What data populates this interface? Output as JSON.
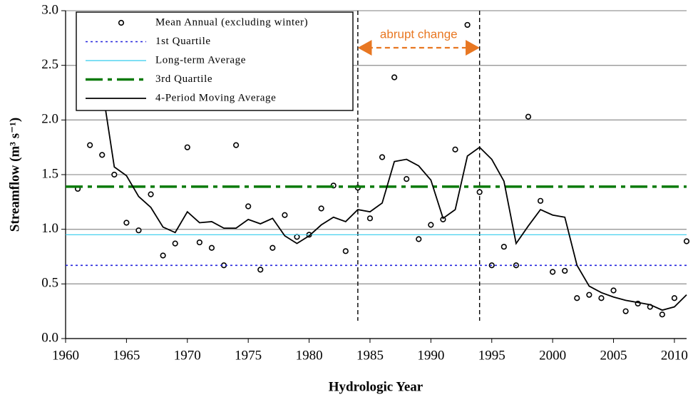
{
  "chart_data": {
    "type": "scatter",
    "x_label": "Hydrologic Year",
    "y_label": "Streamflow (m³ s⁻¹)",
    "x": [
      1961,
      1962,
      1963,
      1964,
      1965,
      1966,
      1967,
      1968,
      1969,
      1970,
      1971,
      1972,
      1973,
      1974,
      1975,
      1976,
      1977,
      1978,
      1979,
      1980,
      1981,
      1982,
      1983,
      1984,
      1985,
      1986,
      1987,
      1988,
      1989,
      1990,
      1991,
      1992,
      1993,
      1994,
      1995,
      1996,
      1997,
      1998,
      1999,
      2000,
      2001,
      2002,
      2003,
      2004,
      2005,
      2006,
      2007,
      2008,
      2009,
      2010,
      2011
    ],
    "series": [
      {
        "name": "Mean Annual (excluding winter)",
        "color": "#000000",
        "style": "marker",
        "values": [
          1.37,
          1.77,
          1.68,
          1.5,
          1.06,
          0.99,
          1.32,
          0.76,
          0.87,
          1.75,
          0.88,
          0.83,
          0.67,
          1.77,
          1.21,
          0.63,
          0.83,
          1.13,
          0.93,
          0.95,
          1.19,
          1.4,
          0.8,
          1.38,
          1.1,
          1.66,
          2.39,
          1.46,
          0.91,
          1.04,
          1.09,
          1.73,
          2.87,
          1.34,
          0.67,
          0.84,
          0.67,
          2.03,
          1.26,
          0.61,
          0.62,
          0.37,
          0.4,
          0.37,
          0.44,
          0.25,
          0.32,
          0.29,
          0.22,
          0.37,
          0.89
        ]
      },
      {
        "name": "1st Quartile",
        "color": "#2222dd",
        "style": "dotted",
        "value": 0.67
      },
      {
        "name": "Long-term Average",
        "color": "#33ccee",
        "style": "thin",
        "value": 0.95
      },
      {
        "name": "3rd Quartile",
        "color": "#0a7a0a",
        "style": "dashdot",
        "value": 1.39
      },
      {
        "name": "4-Period Moving Average",
        "color": "#000000",
        "style": "line",
        "values": [
          null,
          null,
          2.3,
          1.57,
          1.49,
          1.3,
          1.2,
          1.02,
          0.97,
          1.16,
          1.06,
          1.07,
          1.01,
          1.01,
          1.09,
          1.05,
          1.1,
          0.94,
          0.87,
          0.94,
          1.04,
          1.11,
          1.07,
          1.18,
          1.16,
          1.24,
          1.62,
          1.64,
          1.58,
          1.45,
          1.1,
          1.18,
          1.67,
          1.75,
          1.64,
          1.44,
          0.87,
          1.03,
          1.18,
          1.13,
          1.11,
          0.67,
          0.48,
          0.42,
          0.38,
          0.35,
          0.33,
          0.31,
          0.26,
          0.29,
          0.4
        ]
      }
    ],
    "vlines": [
      1984,
      1994
    ],
    "annotation": "abrupt change",
    "xlim": [
      1960,
      2011
    ],
    "xticks": [
      1960,
      1965,
      1970,
      1975,
      1980,
      1985,
      1990,
      1995,
      2000,
      2005,
      2010
    ],
    "ylim": [
      0,
      3
    ],
    "yticks": [
      {
        "value": 0,
        "label": "0.0"
      },
      0.5,
      {
        "value": 1,
        "label": "1.0"
      },
      1.5,
      {
        "value": 2,
        "label": "2.0"
      },
      2.5,
      {
        "value": 3,
        "label": "3.0"
      }
    ],
    "grid": true,
    "legend": "upper left"
  }
}
